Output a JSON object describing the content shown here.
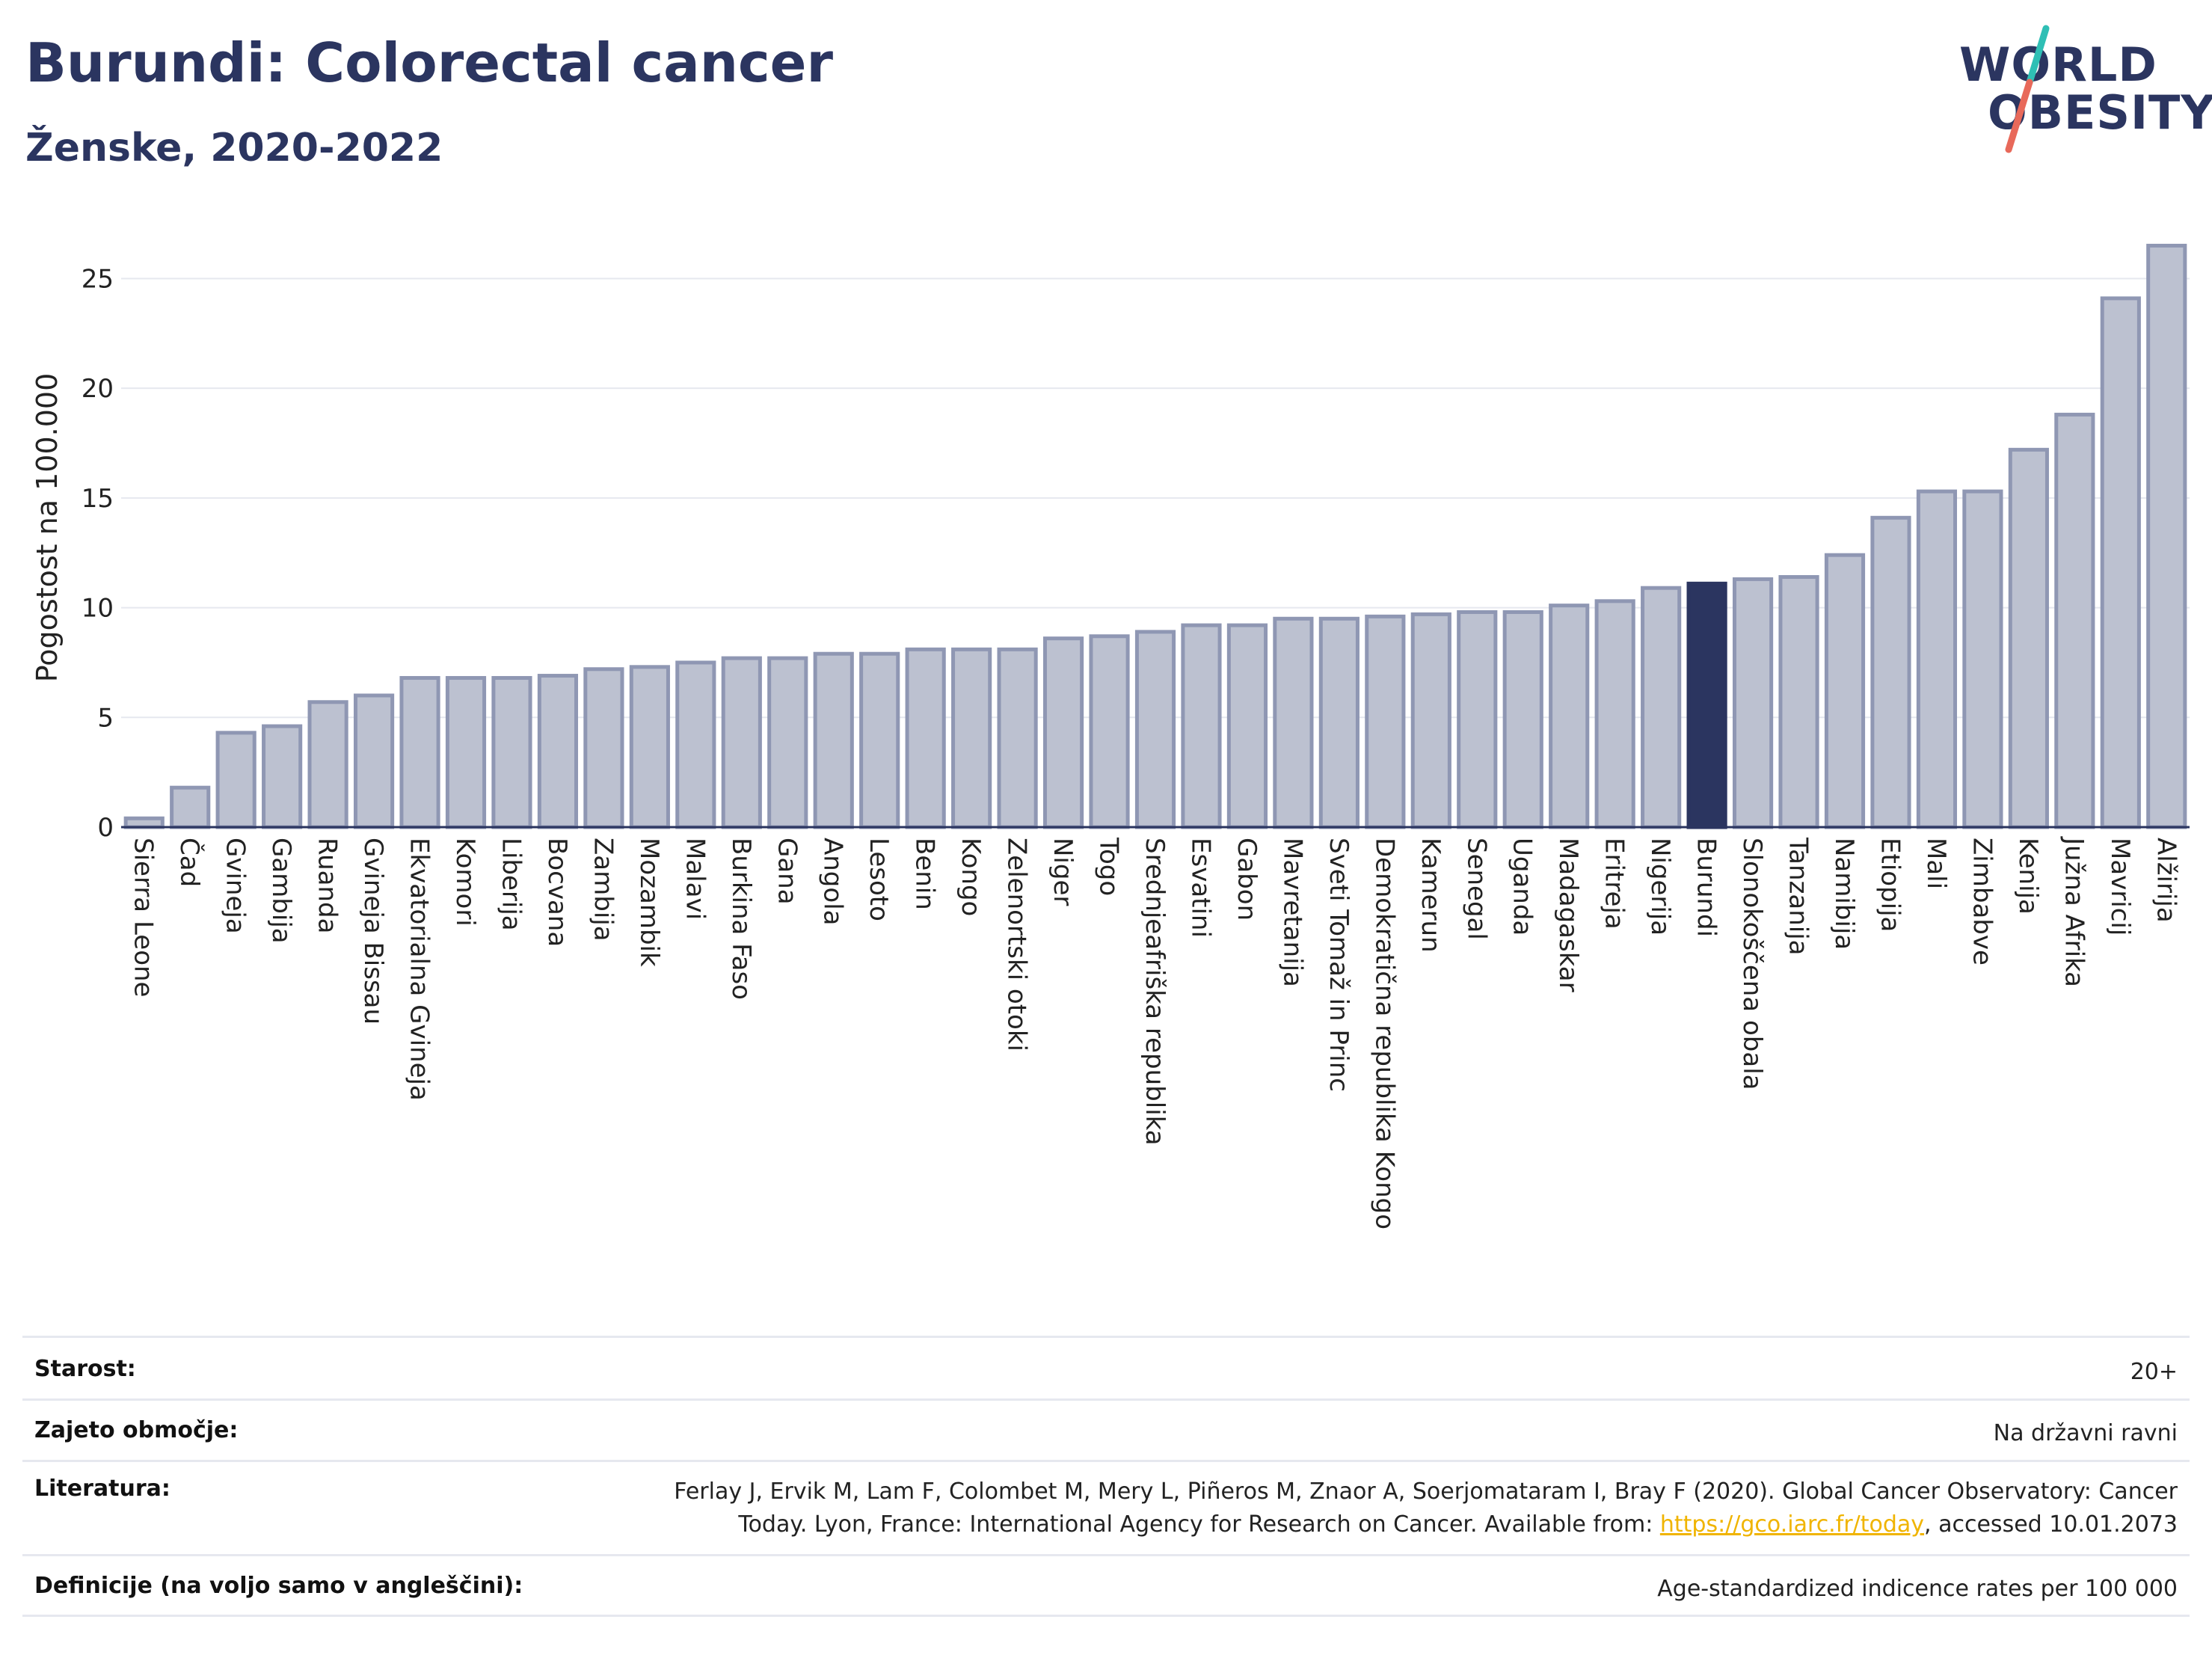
{
  "header": {
    "title": "Burundi: Colorectal cancer",
    "subtitle": "Ženske, 2020-2022"
  },
  "logo": {
    "line1": "WORLD",
    "line2": "OBESITY",
    "accent_teal": "#2fbfb5",
    "accent_red": "#e8695a"
  },
  "colors": {
    "bar": "#bcc1d0",
    "bar_border": "#8f97b3",
    "highlight": "#2b3560",
    "grid": "#e6e8ef",
    "axis": "#2b3560"
  },
  "chart_data": {
    "type": "bar",
    "ylabel": "Pogostost na 100.000",
    "ylim": [
      0,
      27.3
    ],
    "yticks": [
      0,
      5,
      10,
      15,
      20,
      25
    ],
    "grid": true,
    "highlight": "Burundi",
    "categories": [
      "Sierra Leone",
      "Čad",
      "Gvineja",
      "Gambija",
      "Ruanda",
      "Gvineja Bissau",
      "Ekvatorialna Gvineja",
      "Komori",
      "Liberija",
      "Bocvana",
      "Zambija",
      "Mozambik",
      "Malavi",
      "Burkina Faso",
      "Gana",
      "Angola",
      "Lesoto",
      "Benin",
      "Kongo",
      "Zelenortski otoki",
      "Niger",
      "Togo",
      "Srednjeafriška republika",
      "Esvatini",
      "Gabon",
      "Mavretanija",
      "Sveti Tomaž in Princ",
      "Demokratična republika Kongo",
      "Kamerun",
      "Senegal",
      "Uganda",
      "Madagaskar",
      "Eritreja",
      "Nigerija",
      "Burundi",
      "Slonokoščena obala",
      "Tanzanija",
      "Namibija",
      "Etiopija",
      "Mali",
      "Zimbabve",
      "Kenija",
      "Južna Afrika",
      "Mavricij",
      "Alžirija"
    ],
    "values": [
      0.4,
      1.8,
      4.3,
      4.6,
      5.7,
      6.0,
      6.8,
      6.8,
      6.8,
      6.9,
      7.2,
      7.3,
      7.5,
      7.7,
      7.7,
      7.9,
      7.9,
      8.1,
      8.1,
      8.1,
      8.6,
      8.7,
      8.9,
      9.2,
      9.2,
      9.5,
      9.5,
      9.6,
      9.7,
      9.8,
      9.8,
      10.1,
      10.3,
      10.9,
      11.1,
      11.3,
      11.4,
      12.4,
      14.1,
      15.3,
      15.3,
      17.2,
      18.8,
      24.1,
      26.5
    ]
  },
  "meta": {
    "age_label": "Starost:",
    "age_value": "20+",
    "coverage_label": "Zajeto območje:",
    "coverage_value": "Na državni ravni",
    "references_label": "Literatura:",
    "references_line1": "Ferlay J, Ervik M, Lam F, Colombet M, Mery L, Piñeros M, Znaor A, Soerjomataram I, Bray F (2020). Global Cancer Observatory: Cancer",
    "references_line2_pre": "Today. Lyon, France: International Agency for Research on Cancer. Available from: ",
    "references_link": "https://gco.iarc.fr/today",
    "references_line2_post": ", accessed 10.01.2073",
    "definitions_label": "Definicije (na voljo samo v angleščini):",
    "definitions_value": "Age-standardized indicence rates per 100 000"
  }
}
